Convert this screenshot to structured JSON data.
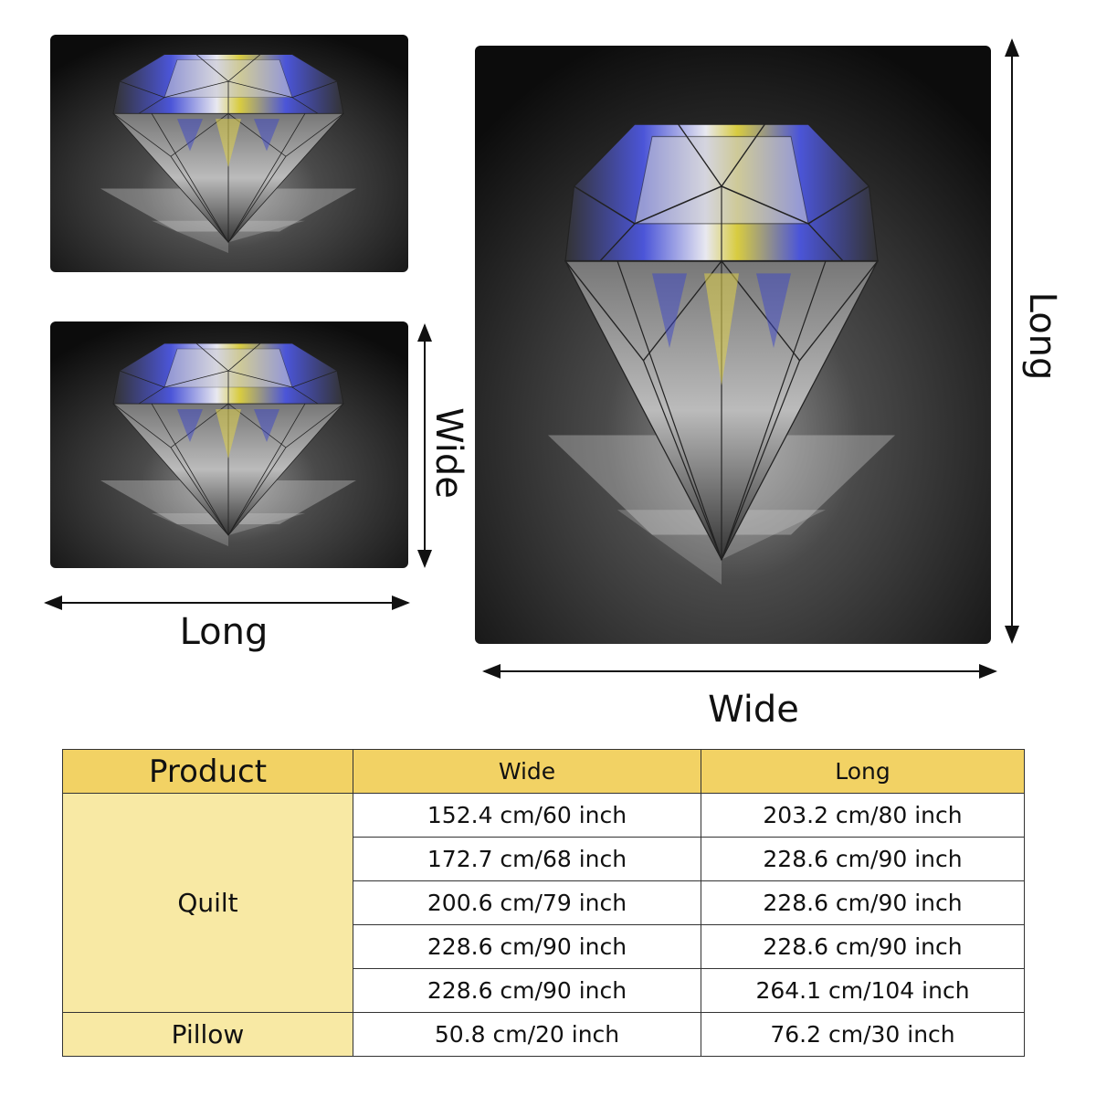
{
  "labels": {
    "pillow_wide": "Wide",
    "pillow_long": "Long",
    "quilt_long": "Long",
    "quilt_wide": "Wide"
  },
  "table": {
    "header": [
      "Product",
      "Wide",
      "Long"
    ],
    "groups": [
      {
        "product": "Quilt",
        "rows": [
          [
            "152.4 cm/60 inch",
            "203.2 cm/80 inch"
          ],
          [
            "172.7 cm/68 inch",
            "228.6 cm/90 inch"
          ],
          [
            "200.6 cm/79 inch",
            "228.6 cm/90 inch"
          ],
          [
            "228.6 cm/90 inch",
            "228.6 cm/90 inch"
          ],
          [
            "228.6 cm/90 inch",
            "264.1 cm/104 inch"
          ]
        ]
      },
      {
        "product": "Pillow",
        "rows": [
          [
            "50.8 cm/20 inch",
            "76.2 cm/30 inch"
          ]
        ]
      }
    ]
  }
}
